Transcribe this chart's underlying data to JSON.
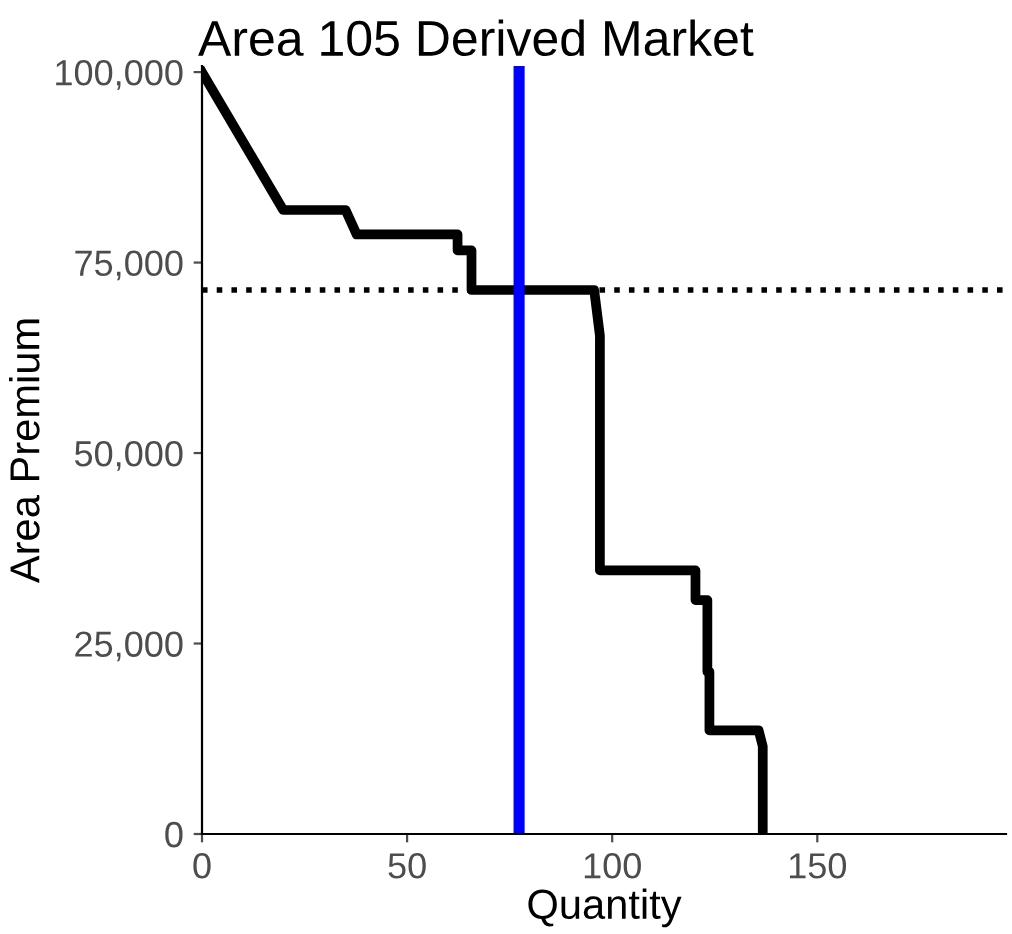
{
  "chart_data": {
    "type": "line",
    "title": "Area 105 Derived Market",
    "xlabel": "Quantity",
    "ylabel": "Area Premium",
    "series": [
      {
        "color": "#000000",
        "x": [
          0,
          19.8,
          35,
          37.7,
          62.3,
          62.3,
          65.7,
          65.7,
          95.6,
          97,
          97,
          120.3,
          120.3,
          123.2,
          123.2,
          123.7,
          123.7,
          135.7,
          136.7,
          136.7
        ],
        "values": [
          100000,
          81900,
          81900,
          78700,
          78700,
          76600,
          76600,
          71400,
          71400,
          65400,
          34600,
          34600,
          30700,
          30700,
          21300,
          21300,
          13600,
          13600,
          11500,
          0
        ]
      }
    ],
    "xlim": [
      0,
      196
    ],
    "xticks": [
      0,
      50,
      100,
      150
    ],
    "ylim": [
      0,
      100800
    ],
    "yticks": [
      {
        "value": 0,
        "label": "0"
      },
      {
        "value": 25000,
        "label": "25,000"
      },
      {
        "value": 50000,
        "label": "50,000"
      },
      {
        "value": 75000,
        "label": "75,000"
      },
      {
        "value": 100000,
        "label": "100,000"
      }
    ],
    "ref_lines": [
      {
        "axis": "y",
        "value": 71400,
        "color": "#000000",
        "line_style": "dotted"
      },
      {
        "axis": "x",
        "value": 77.3,
        "color": "#0000ff",
        "line_style": "solid"
      }
    ],
    "grid": false,
    "legend": false,
    "marker": "none",
    "line_style": "solid"
  }
}
